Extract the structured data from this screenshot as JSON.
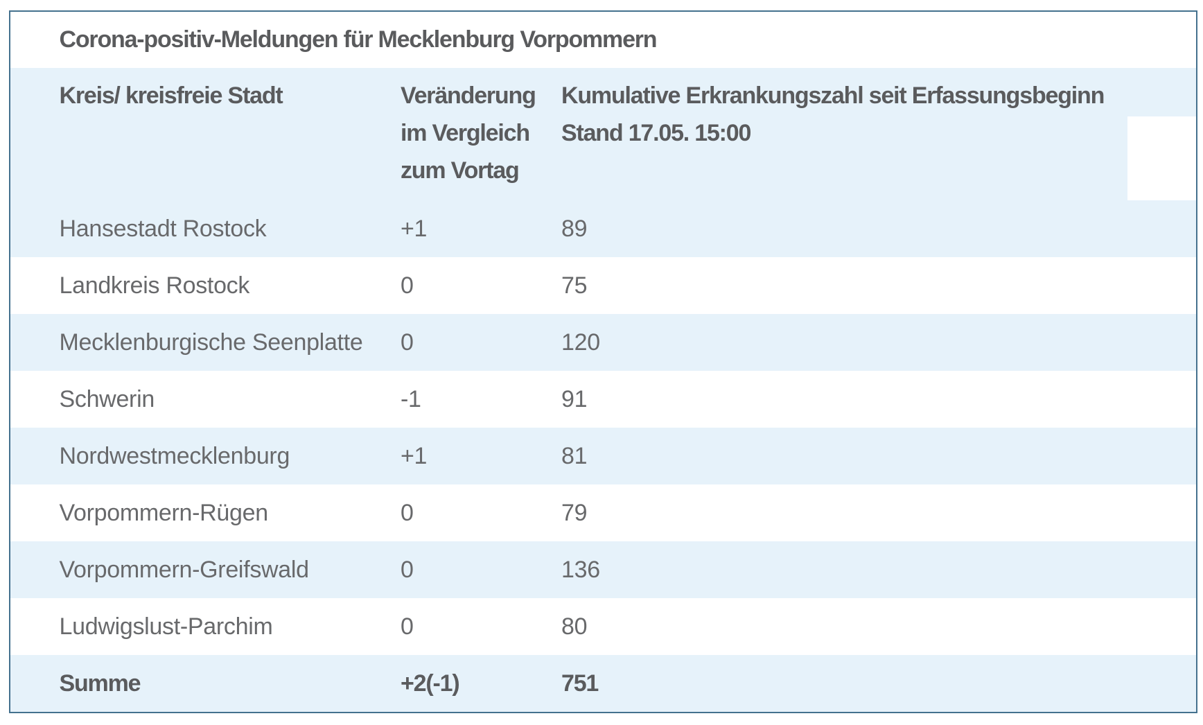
{
  "table": {
    "title": "Corona-positiv-Meldungen für Mecklenburg Vorpommern",
    "header": {
      "col1": "Kreis/ kreisfreie Stadt",
      "col2": "Veränderung im Vergleich zum Vortag",
      "col3_line1": "Kumulative Erkrankungszahl seit Erfassungsbeginn",
      "col3_line2": "Stand 17.05. 15:00"
    },
    "rows": [
      {
        "name": "Hansestadt Rostock",
        "change": "+1",
        "cumulative": "89"
      },
      {
        "name": "Landkreis Rostock",
        "change": "0",
        "cumulative": "75"
      },
      {
        "name": "Mecklenburgische Seenplatte",
        "change": "0",
        "cumulative": "120"
      },
      {
        "name": "Schwerin",
        "change": "-1",
        "cumulative": "91"
      },
      {
        "name": "Nordwestmecklenburg",
        "change": "+1",
        "cumulative": "81"
      },
      {
        "name": "Vorpommern-Rügen",
        "change": "0",
        "cumulative": "79"
      },
      {
        "name": "Vorpommern-Greifswald",
        "change": "0",
        "cumulative": "136"
      },
      {
        "name": "Ludwigslust-Parchim",
        "change": "0",
        "cumulative": "80"
      },
      {
        "name": "Summe",
        "change": "+2(-1)",
        "cumulative": "751"
      }
    ],
    "colors": {
      "border": "#44718e",
      "row_stripe": "#e6f2fa",
      "text": "#68696b",
      "heading_text": "#5a5b5d"
    }
  }
}
